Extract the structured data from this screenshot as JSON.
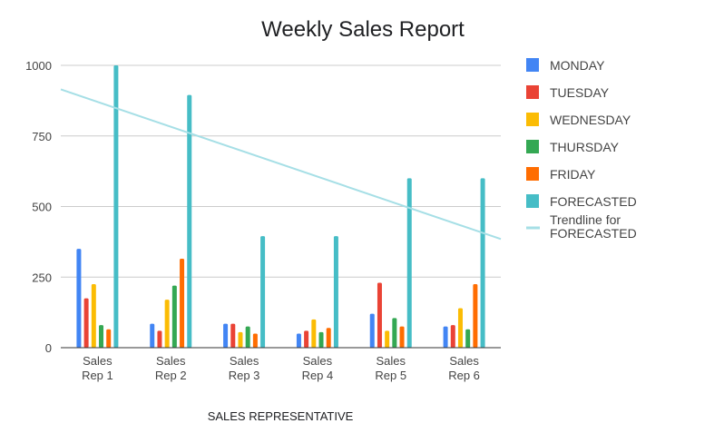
{
  "chart_data": {
    "type": "bar",
    "title": "Weekly Sales Report",
    "xlabel": "SALES REPRESENTATIVE",
    "ylabel": "",
    "ylim": [
      0,
      1000
    ],
    "yticks": [
      0,
      250,
      500,
      750,
      1000
    ],
    "grid": true,
    "legend_position": "right",
    "categories": [
      [
        "Sales",
        "Rep 1"
      ],
      [
        "Sales",
        "Rep 2"
      ],
      [
        "Sales",
        "Rep 3"
      ],
      [
        "Sales",
        "Rep 4"
      ],
      [
        "Sales",
        "Rep 5"
      ],
      [
        "Sales",
        "Rep 6"
      ]
    ],
    "series": [
      {
        "name": "MONDAY",
        "color": "#4285f4",
        "values": [
          350,
          85,
          85,
          50,
          120,
          75
        ]
      },
      {
        "name": "TUESDAY",
        "color": "#ea4335",
        "values": [
          175,
          60,
          85,
          60,
          230,
          80
        ]
      },
      {
        "name": "WEDNESDAY",
        "color": "#fbbc04",
        "values": [
          225,
          170,
          55,
          100,
          60,
          140
        ]
      },
      {
        "name": "THURSDAY",
        "color": "#34a853",
        "values": [
          80,
          220,
          75,
          55,
          105,
          65
        ]
      },
      {
        "name": "FRIDAY",
        "color": "#ff6d01",
        "values": [
          65,
          315,
          50,
          70,
          75,
          225
        ]
      },
      {
        "name": "FORECASTED",
        "color": "#46bdc6",
        "values": [
          1000,
          895,
          395,
          395,
          600,
          600
        ]
      }
    ],
    "trendline": {
      "name": "Trendline for FORECASTED",
      "label_lines": [
        "Trendline for",
        "FORECASTED"
      ],
      "series": "FORECASTED",
      "color": "#a6dfe6",
      "start_value": 915,
      "end_value": 385
    }
  }
}
